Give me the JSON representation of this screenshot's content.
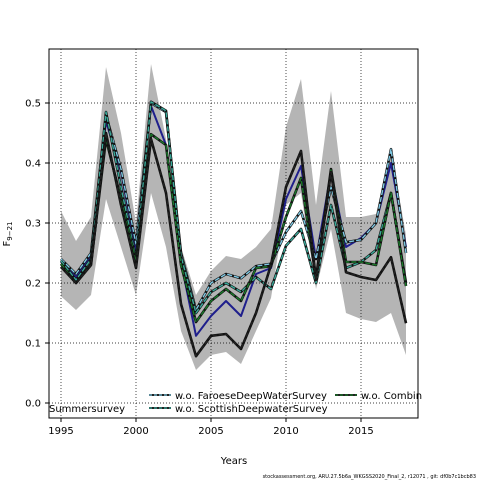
{
  "chart_data": {
    "type": "line",
    "xlabel": "Years",
    "ylabel": "F",
    "ylabel_sub": "9−21",
    "xlim": [
      1994.2,
      2018.8
    ],
    "ylim": [
      -0.025,
      0.59
    ],
    "x_ticks": [
      1995,
      2000,
      2005,
      2010,
      2015
    ],
    "y_ticks": [
      0.0,
      0.1,
      0.2,
      0.3,
      0.4,
      0.5
    ],
    "y_tick_labels": [
      "0.0",
      "0.1",
      "0.2",
      "0.3",
      "0.4",
      "0.5"
    ],
    "grid": true,
    "years": [
      1995,
      1996,
      1997,
      1998,
      1999,
      2000,
      2001,
      2002,
      2003,
      2004,
      2005,
      2006,
      2007,
      2008,
      2009,
      2010,
      2011,
      2012,
      2013,
      2014,
      2015,
      2016,
      2017,
      2018
    ],
    "band": {
      "lower": [
        0.178,
        0.155,
        0.18,
        0.34,
        0.26,
        0.18,
        0.35,
        0.26,
        0.12,
        0.055,
        0.08,
        0.085,
        0.065,
        0.12,
        0.175,
        0.33,
        0.35,
        0.19,
        0.29,
        0.15,
        0.14,
        0.135,
        0.15,
        0.08
      ],
      "upper": [
        0.32,
        0.27,
        0.31,
        0.56,
        0.45,
        0.3,
        0.565,
        0.44,
        0.26,
        0.18,
        0.22,
        0.245,
        0.24,
        0.26,
        0.29,
        0.46,
        0.54,
        0.33,
        0.52,
        0.31,
        0.31,
        0.315,
        0.42,
        0.28
      ]
    },
    "series": [
      {
        "name": "",
        "color": "#1f1f8c",
        "dash": "",
        "values": [
          0.235,
          0.21,
          0.245,
          0.47,
          0.385,
          0.255,
          0.495,
          0.43,
          0.235,
          0.112,
          0.145,
          0.17,
          0.145,
          0.215,
          0.225,
          0.34,
          0.395,
          0.24,
          0.385,
          0.26,
          0.275,
          0.3,
          0.4,
          0.26
        ]
      },
      {
        "name": "w.o. FaroeseDeepWaterSurvey",
        "color": "#7ec8e3",
        "dash": "5,2",
        "values": [
          0.24,
          0.215,
          0.25,
          0.48,
          0.39,
          0.265,
          0.5,
          0.485,
          0.25,
          0.155,
          0.2,
          0.215,
          0.208,
          0.228,
          0.232,
          0.285,
          0.32,
          0.24,
          0.36,
          0.268,
          0.272,
          0.3,
          0.423,
          0.25
        ]
      },
      {
        "name": "w.o. ScottishDeepwaterSurvey",
        "color": "#3aaa9a",
        "dash": "5,2",
        "values": [
          0.237,
          0.205,
          0.24,
          0.485,
          0.36,
          0.24,
          0.502,
          0.487,
          0.245,
          0.15,
          0.185,
          0.2,
          0.185,
          0.21,
          0.19,
          0.262,
          0.29,
          0.2,
          0.33,
          0.225,
          0.235,
          0.255,
          0.35,
          0.2
        ]
      },
      {
        "name": "w.o. Combin",
        "color": "#1a7a2a",
        "dash": "5,2",
        "values": [
          0.232,
          0.2,
          0.232,
          0.44,
          0.34,
          0.235,
          0.448,
          0.43,
          0.23,
          0.135,
          0.17,
          0.19,
          0.17,
          0.225,
          0.228,
          0.31,
          0.375,
          0.208,
          0.39,
          0.235,
          0.235,
          0.23,
          0.35,
          0.195
        ]
      },
      {
        "name": "Summersurvey",
        "color": "#222222",
        "dash": "4,2",
        "values": [
          0.227,
          0.2,
          0.23,
          0.45,
          0.33,
          0.225,
          0.44,
          0.35,
          0.165,
          0.078,
          0.112,
          0.115,
          0.09,
          0.15,
          0.23,
          0.36,
          0.42,
          0.205,
          0.385,
          0.218,
          0.21,
          0.205,
          0.243,
          0.133
        ]
      }
    ],
    "legend_position": "bottom",
    "legend_entries": [
      {
        "label": "w.o. FaroeseDeepWaterSurvey",
        "color": "#7ec8e3"
      },
      {
        "label": "w.o. Combin",
        "color": "#1a7a2a"
      },
      {
        "label": "w.o. ScottishDeepwaterSurvey",
        "color": "#3aaa9a"
      },
      {
        "label": "Summersurvey",
        "color": "#222222"
      }
    ]
  },
  "footer": "stockassessment.org, ARU.27.5b6a_WKGSS2020_Final_2, r12071 , git: df0b7c1bcb83"
}
